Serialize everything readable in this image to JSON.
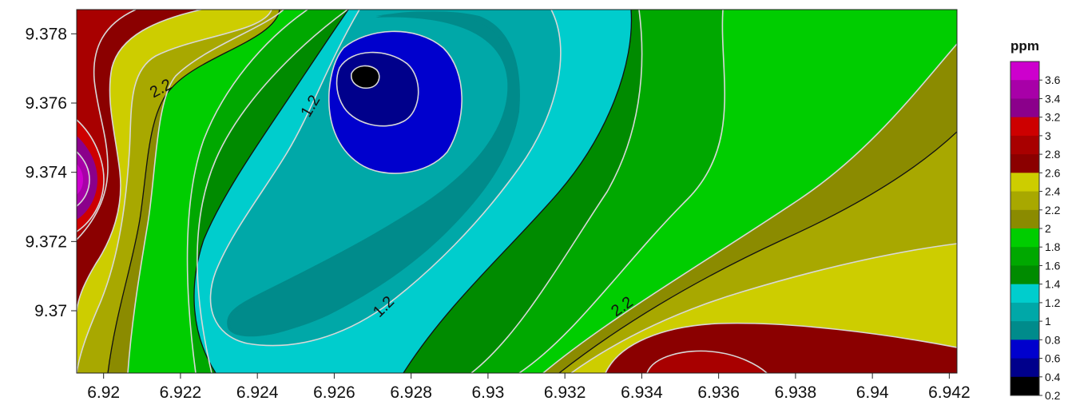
{
  "chart_data": {
    "type": "heatmap",
    "subtype": "filled-contour",
    "title": "",
    "xlabel": "",
    "ylabel": "",
    "xlim": [
      6.9193,
      6.9422
    ],
    "ylim": [
      9.3682,
      9.3787
    ],
    "x_ticks": [
      "6.92",
      "6.922",
      "6.924",
      "6.926",
      "6.928",
      "6.93",
      "6.932",
      "6.934",
      "6.936",
      "6.938",
      "6.94",
      "6.942"
    ],
    "x_tick_values": [
      6.92,
      6.922,
      6.924,
      6.926,
      6.928,
      6.93,
      6.932,
      6.934,
      6.936,
      6.938,
      6.94,
      6.942
    ],
    "y_ticks": [
      "9.378",
      "9.376",
      "9.374",
      "9.372",
      "9.37"
    ],
    "y_tick_values": [
      9.378,
      9.376,
      9.374,
      9.372,
      9.37
    ],
    "grid": false,
    "colorbar": {
      "title": "ppm",
      "placement": "right",
      "tick_labels": [
        "3.6",
        "3.4",
        "3.2",
        "3",
        "2.8",
        "2.6",
        "2.4",
        "2.2",
        "2",
        "1.8",
        "1.6",
        "1.4",
        "1.2",
        "1",
        "0.8",
        "0.6",
        "0.4",
        "0.2"
      ],
      "levels": [
        {
          "from": 0.2,
          "to": 0.4,
          "color": "#000000"
        },
        {
          "from": 0.4,
          "to": 0.6,
          "color": "#00008b"
        },
        {
          "from": 0.6,
          "to": 0.8,
          "color": "#0000cd"
        },
        {
          "from": 0.8,
          "to": 1.0,
          "color": "#008b8b"
        },
        {
          "from": 1.0,
          "to": 1.2,
          "color": "#00a8a8"
        },
        {
          "from": 1.2,
          "to": 1.4,
          "color": "#00cdcd"
        },
        {
          "from": 1.4,
          "to": 1.6,
          "color": "#008b00"
        },
        {
          "from": 1.6,
          "to": 1.8,
          "color": "#00a800"
        },
        {
          "from": 1.8,
          "to": 2.0,
          "color": "#00cd00"
        },
        {
          "from": 2.0,
          "to": 2.2,
          "color": "#8b8b00"
        },
        {
          "from": 2.2,
          "to": 2.4,
          "color": "#a8a800"
        },
        {
          "from": 2.4,
          "to": 2.6,
          "color": "#cdcd00"
        },
        {
          "from": 2.6,
          "to": 2.8,
          "color": "#8b0000"
        },
        {
          "from": 2.8,
          "to": 3.0,
          "color": "#a80000"
        },
        {
          "from": 3.0,
          "to": 3.2,
          "color": "#cd0000"
        },
        {
          "from": 3.2,
          "to": 3.4,
          "color": "#8b008b"
        },
        {
          "from": 3.4,
          "to": 3.6,
          "color": "#a800a8"
        },
        {
          "from": 3.6,
          "to": 3.8,
          "color": "#cd00cd"
        }
      ]
    },
    "contour_labels": [
      {
        "text": "2.2",
        "value": 2.2,
        "x": 6.9215,
        "y": 9.3764
      },
      {
        "text": "1.2",
        "value": 1.2,
        "x": 6.9254,
        "y": 9.3759
      },
      {
        "text": "1.2",
        "value": 1.2,
        "x": 6.9273,
        "y": 9.3701
      },
      {
        "text": "2.2",
        "value": 2.2,
        "x": 6.9335,
        "y": 9.3701
      }
    ],
    "features": [
      {
        "kind": "minimum",
        "x": 6.9267,
        "y": 9.3768,
        "value_range": [
          0.2,
          0.4
        ]
      },
      {
        "kind": "maximum",
        "x": 6.9193,
        "y": 9.3734,
        "value_range": [
          3.6,
          3.8
        ]
      },
      {
        "kind": "maximum",
        "x": 6.9352,
        "y": 9.3682,
        "value_range": [
          2.8,
          3.0
        ]
      }
    ]
  }
}
